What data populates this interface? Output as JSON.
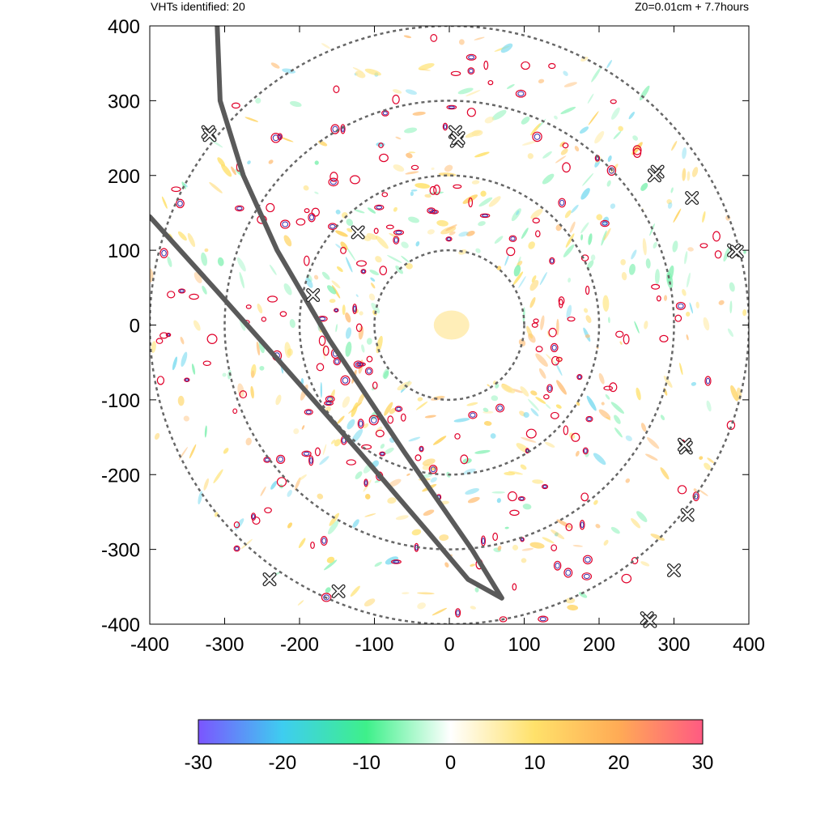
{
  "header": {
    "left_text": "VHTs identified: 20",
    "right_text": "Z0=0.01cm  + 7.7hours"
  },
  "chart_data": {
    "type": "scatter",
    "title": "",
    "xlabel": "",
    "ylabel": "",
    "xlim": [
      -400,
      400
    ],
    "ylim": [
      -400,
      400
    ],
    "x_ticks": [
      "-400",
      "-300",
      "-200",
      "-100",
      "0",
      "100",
      "200",
      "300",
      "400"
    ],
    "y_ticks": [
      "400",
      "300",
      "200",
      "100",
      "0",
      "-100",
      "-200",
      "-300",
      "-400"
    ],
    "x_tick_values": [
      -400,
      -300,
      -200,
      -100,
      0,
      100,
      200,
      300,
      400
    ],
    "y_tick_values": [
      400,
      300,
      200,
      100,
      0,
      -100,
      -200,
      -300,
      -400
    ],
    "range_rings": [
      100,
      200,
      300,
      400
    ],
    "vht_markers": [
      {
        "x": -322,
        "y": 258
      },
      {
        "x": 8,
        "y": 258
      },
      {
        "x": 10,
        "y": 246
      },
      {
        "x": 278,
        "y": 205
      },
      {
        "x": 324,
        "y": 170
      },
      {
        "x": 380,
        "y": 100
      },
      {
        "x": -122,
        "y": 124
      },
      {
        "x": -182,
        "y": 40
      },
      {
        "x": 316,
        "y": -164
      },
      {
        "x": 318,
        "y": -254
      },
      {
        "x": 300,
        "y": -328
      },
      {
        "x": -240,
        "y": -340
      },
      {
        "x": -148,
        "y": -356
      },
      {
        "x": 264,
        "y": -392
      },
      {
        "x": -320,
        "y": 254
      },
      {
        "x": 12,
        "y": 250
      },
      {
        "x": 274,
        "y": 200
      },
      {
        "x": 384,
        "y": 98
      },
      {
        "x": 314,
        "y": -160
      },
      {
        "x": 268,
        "y": -396
      }
    ],
    "tracks": [
      {
        "points": [
          [
            -310,
            400
          ],
          [
            -306,
            300
          ],
          [
            -275,
            200
          ],
          [
            -230,
            100
          ],
          [
            -160,
            -20
          ],
          [
            -60,
            -170
          ],
          [
            30,
            -300
          ],
          [
            70,
            -365
          ]
        ]
      },
      {
        "points": [
          [
            -400,
            145
          ],
          [
            -310,
            45
          ],
          [
            -230,
            -45
          ],
          [
            -120,
            -170
          ],
          [
            -30,
            -275
          ],
          [
            25,
            -340
          ],
          [
            70,
            -365
          ]
        ]
      }
    ],
    "colorbar": {
      "min": -30,
      "max": 30,
      "ticks": [
        "-30",
        "-20",
        "-10",
        "0",
        "10",
        "20",
        "30"
      ],
      "tick_values": [
        -30,
        -20,
        -10,
        0,
        10,
        20,
        30
      ],
      "stops": [
        {
          "v": -30,
          "color": "#7b55ff"
        },
        {
          "v": -20,
          "color": "#3ecdf0"
        },
        {
          "v": -10,
          "color": "#3ef08a"
        },
        {
          "v": 0,
          "color": "#ffffff"
        },
        {
          "v": 10,
          "color": "#ffe16a"
        },
        {
          "v": 20,
          "color": "#ffab55"
        },
        {
          "v": 30,
          "color": "#ff5a82"
        }
      ]
    },
    "colors": {
      "ring": "#666666",
      "track": "#5a5a5a",
      "contour_outer": "#e0002a",
      "contour_inner": "#3a2aa8",
      "marker_fill": "#ffffff",
      "marker_stroke": "#222222"
    },
    "grid": false
  }
}
